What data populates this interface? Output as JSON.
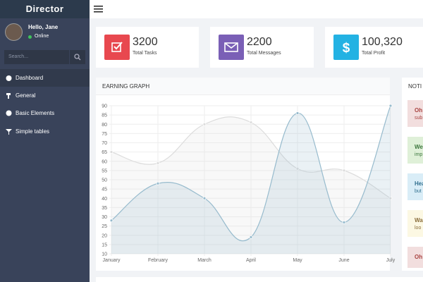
{
  "brand": "Director",
  "user": {
    "greeting": "Hello, Jane",
    "status": "Online"
  },
  "search_placeholder": "Search...",
  "menu": [
    "Dashboard",
    "General",
    "Basic Elements",
    "Simple tables"
  ],
  "stats": [
    {
      "value": "3200",
      "label": "Total Tasks"
    },
    {
      "value": "2200",
      "label": "Total Messages"
    },
    {
      "value": "100,320",
      "label": "Total Profit"
    }
  ],
  "notifications": {
    "title": "NOTI",
    "items": [
      {
        "head": "Oh",
        "text": "sub"
      },
      {
        "head": "We",
        "text": "imp"
      },
      {
        "head": "Hea",
        "text": "but"
      },
      {
        "head": "Wa",
        "text": "loo"
      },
      {
        "head": "Oh"
      }
    ]
  },
  "chart_data": {
    "type": "line",
    "title": "EARNING GRAPH",
    "categories": [
      "January",
      "February",
      "March",
      "April",
      "May",
      "June",
      "July"
    ],
    "series": [
      {
        "color": "#dcdcdc",
        "values": [
          65,
          59,
          80,
          81,
          56,
          55,
          40
        ]
      },
      {
        "color": "#97bbcd",
        "values": [
          28,
          48,
          40,
          19,
          86,
          27,
          90
        ]
      }
    ],
    "ylim": [
      10,
      90
    ],
    "yticks": [
      10,
      15,
      20,
      25,
      30,
      35,
      40,
      45,
      50,
      55,
      60,
      65,
      70,
      75,
      80,
      85,
      90
    ],
    "grid": true
  }
}
